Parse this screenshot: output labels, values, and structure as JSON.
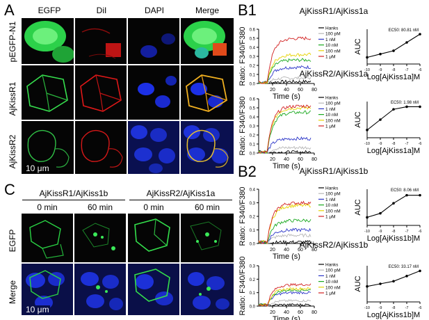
{
  "panel_a": {
    "letter": "A",
    "columns": [
      "EGFP",
      "DiI",
      "DAPI",
      "Merge"
    ],
    "rows": [
      "pEGFP-N1",
      "AjKissR1",
      "AjKissR2"
    ],
    "scale_bar": "10 μm"
  },
  "panel_c": {
    "letter": "C",
    "group_left": "AjKissR1/AjKiss1b",
    "group_right": "AjKissR2/AjKiss1a",
    "times": [
      "0 min",
      "60 min",
      "0 min",
      "60 min"
    ],
    "rows": [
      "EGFP",
      "Merge"
    ],
    "scale_bar": "10 μm"
  },
  "panel_b1": {
    "letter": "B1"
  },
  "panel_b2": {
    "letter": "B2"
  },
  "colors": {
    "Hanks": "#000000",
    "100 pM": "#b7b7b7",
    "1 nM": "#2b35c8",
    "10 nM": "#19a81e",
    "100 nM": "#e6d300",
    "1 μM": "#d21f1f",
    "egfp": "#2ee84a",
    "dil": "#e01a1a",
    "dapi": "#1c2de0",
    "merge": "#e8a020"
  },
  "chart_data": [
    {
      "id": "b1_r1_trace",
      "type": "line",
      "title": "AjKissR1/AjKiss1a",
      "xlabel": "Time (s)",
      "ylabel": "Ratio: F340/F380",
      "xlim": [
        0,
        80
      ],
      "ylim": [
        0,
        0.6
      ],
      "xticks": [
        20,
        40,
        60,
        80
      ],
      "yticks": [
        0.0,
        0.1,
        0.2,
        0.3,
        0.4,
        0.5,
        0.6
      ],
      "series": [
        {
          "name": "Hanks",
          "plateau": 0.02
        },
        {
          "name": "100 pM",
          "plateau": 0.06
        },
        {
          "name": "1 nM",
          "plateau": 0.18
        },
        {
          "name": "10 nM",
          "plateau": 0.26
        },
        {
          "name": "100 nM",
          "plateau": 0.32
        },
        {
          "name": "1 μM",
          "plateau": 0.5
        }
      ]
    },
    {
      "id": "b1_r1_dose",
      "type": "line",
      "xlabel": "Log[AjKiss1a]M",
      "ylabel": "AUC",
      "xlim": [
        -10,
        -6
      ],
      "xticks": [
        -10,
        -9,
        -8,
        -7,
        -6
      ],
      "ec50": "EC50: 80.81 nM",
      "x": [
        -10,
        -9,
        -8,
        -7,
        -6
      ],
      "values": [
        4,
        6,
        8,
        13,
        18
      ]
    },
    {
      "id": "b1_r2_trace",
      "type": "line",
      "title": "AjKissR2/AjKiss1a",
      "xlabel": "Time (s)",
      "ylabel": "Ratio: F340/F380",
      "xlim": [
        0,
        80
      ],
      "ylim": [
        0,
        0.6
      ],
      "xticks": [
        20,
        40,
        60,
        80
      ],
      "yticks": [
        0.0,
        0.1,
        0.2,
        0.3,
        0.4,
        0.5,
        0.6
      ],
      "series": [
        {
          "name": "Hanks",
          "plateau": 0.01
        },
        {
          "name": "100 pM",
          "plateau": 0.06
        },
        {
          "name": "1 nM",
          "plateau": 0.16
        },
        {
          "name": "10 nM",
          "plateau": 0.45
        },
        {
          "name": "100 nM",
          "plateau": 0.5
        },
        {
          "name": "1 μM",
          "plateau": 0.52
        }
      ]
    },
    {
      "id": "b1_r2_dose",
      "type": "line",
      "xlabel": "Log[AjKiss1a]M",
      "ylabel": "AUC",
      "xlim": [
        -10,
        -6
      ],
      "xticks": [
        -10,
        -9,
        -8,
        -7,
        -6
      ],
      "ec50": "EC50: 1.98 nM",
      "x": [
        -10,
        -9,
        -8,
        -7,
        -6
      ],
      "values": [
        6,
        14,
        22,
        24,
        24
      ]
    },
    {
      "id": "b2_r1_trace",
      "type": "line",
      "title": "AjKissR1/AjKiss1b",
      "xlabel": "Time (s)",
      "ylabel": "Ratio: F340/F380",
      "xlim": [
        0,
        80
      ],
      "ylim": [
        0,
        0.4
      ],
      "xticks": [
        20,
        40,
        60,
        80
      ],
      "yticks": [
        0.0,
        0.1,
        0.2,
        0.3,
        0.4
      ],
      "series": [
        {
          "name": "Hanks",
          "plateau": 0.01
        },
        {
          "name": "100 pM",
          "plateau": 0.06
        },
        {
          "name": "1 nM",
          "plateau": 0.1
        },
        {
          "name": "10 nM",
          "plateau": 0.17
        },
        {
          "name": "100 nM",
          "plateau": 0.28
        },
        {
          "name": "1 μM",
          "plateau": 0.3
        }
      ]
    },
    {
      "id": "b2_r1_dose",
      "type": "line",
      "xlabel": "Log[AjKiss1b]M",
      "ylabel": "AUC",
      "xlim": [
        -10,
        -6
      ],
      "xticks": [
        -10,
        -9,
        -8,
        -7,
        -6
      ],
      "ec50": "EC50: 8.06 nM",
      "x": [
        -10,
        -9,
        -8,
        -7,
        -6
      ],
      "values": [
        4,
        6,
        11,
        15,
        15
      ]
    },
    {
      "id": "b2_r2_trace",
      "type": "line",
      "title": "AjKissR2/AjKiss1b",
      "xlabel": "Time (s)",
      "ylabel": "Ratio: F340/F380",
      "xlim": [
        0,
        80
      ],
      "ylim": [
        0,
        0.3
      ],
      "xticks": [
        20,
        40,
        60,
        80
      ],
      "yticks": [
        0.0,
        0.1,
        0.2,
        0.3
      ],
      "series": [
        {
          "name": "Hanks",
          "plateau": 0.01
        },
        {
          "name": "100 pM",
          "plateau": 0.04
        },
        {
          "name": "1 nM",
          "plateau": 0.1
        },
        {
          "name": "10 nM",
          "plateau": 0.12
        },
        {
          "name": "100 nM",
          "plateau": 0.13
        },
        {
          "name": "1 μM",
          "plateau": 0.16
        }
      ]
    },
    {
      "id": "b2_r2_dose",
      "type": "line",
      "xlabel": "Log[AjKiss1b]M",
      "ylabel": "AUC",
      "xlim": [
        -10,
        -6
      ],
      "xticks": [
        -10,
        -9,
        -8,
        -7,
        -6
      ],
      "ec50": "EC50: 33.17 nM",
      "x": [
        -10,
        -9,
        -8,
        -7,
        -6
      ],
      "values": [
        6,
        7,
        8,
        10,
        12
      ]
    }
  ]
}
